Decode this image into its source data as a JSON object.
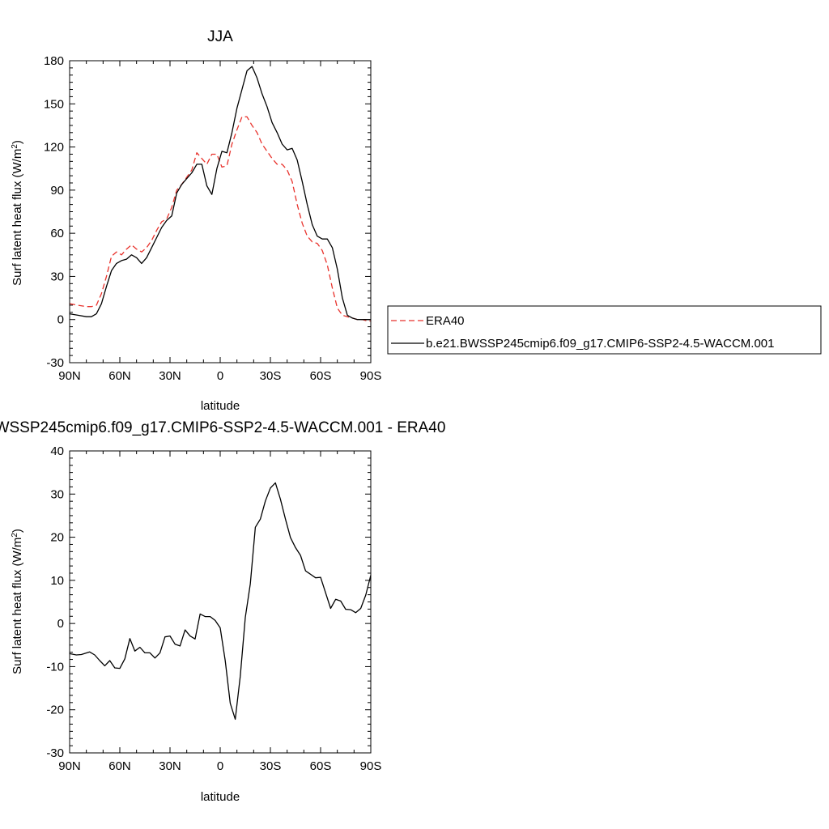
{
  "colors": {
    "background": "#ffffff",
    "model_line": "#000000",
    "era40_line": "#e8322c"
  },
  "chart_data": [
    {
      "type": "line",
      "title": "JJA",
      "xlabel": "latitude",
      "ylabel": "Surf latent heat flux (W/m",
      "ylabel_sup": "2",
      "ylabel_end": ")",
      "xlim": [
        90,
        -90
      ],
      "ylim": [
        -30,
        180
      ],
      "xticks": [
        90,
        60,
        30,
        0,
        -30,
        -60,
        -90
      ],
      "xtick_labels": [
        "90N",
        "60N",
        "30N",
        "0",
        "30S",
        "60S",
        "90S"
      ],
      "yticks": [
        -30,
        0,
        30,
        60,
        90,
        120,
        150,
        180
      ],
      "ytick_labels": [
        "-30",
        "0",
        "30",
        "60",
        "90",
        "120",
        "150",
        "180"
      ],
      "legend_position": "right",
      "series": [
        {
          "name": "ERA40",
          "style": "dashed",
          "color": "#e8322c",
          "x": [
            90,
            85,
            80,
            77,
            74,
            71,
            68,
            65,
            62,
            59,
            56,
            53,
            50,
            47,
            44,
            41,
            38,
            35,
            32,
            29,
            26,
            23,
            20,
            17,
            14,
            11,
            8,
            5,
            2,
            -1,
            -4,
            -7,
            -10,
            -13,
            -16,
            -19,
            -22,
            -25,
            -28,
            -31,
            -34,
            -37,
            -40,
            -43,
            -46,
            -49,
            -52,
            -55,
            -58,
            -61,
            -64,
            -67,
            -70,
            -73,
            -76,
            -79,
            -82,
            -85,
            -88,
            -90
          ],
          "y": [
            11,
            10,
            9,
            9,
            10,
            18,
            30,
            44,
            47,
            45,
            49,
            52,
            49,
            47,
            50,
            55,
            62,
            68,
            70,
            78,
            90,
            94,
            99,
            104,
            116,
            112,
            108,
            115,
            115,
            106,
            107,
            122,
            132,
            141,
            141,
            135,
            130,
            122,
            117,
            112,
            108,
            108,
            104,
            96,
            80,
            67,
            58,
            54,
            53,
            48,
            38,
            22,
            8,
            3,
            2,
            1,
            0,
            0,
            -1,
            -1
          ]
        },
        {
          "name": "b.e21.BWSSP245cmip6.f09_g17.CMIP6-SSP2-4.5-WACCM.001",
          "style": "solid",
          "color": "#000000",
          "x": [
            90,
            85,
            80,
            77,
            74,
            71,
            68,
            65,
            62,
            59,
            56,
            53,
            50,
            47,
            44,
            41,
            38,
            35,
            32,
            29,
            26,
            23,
            20,
            17,
            14,
            11,
            8,
            5,
            2,
            -1,
            -4,
            -7,
            -10,
            -13,
            -16,
            -19,
            -22,
            -25,
            -28,
            -31,
            -34,
            -37,
            -40,
            -43,
            -46,
            -49,
            -52,
            -55,
            -58,
            -61,
            -64,
            -67,
            -70,
            -73,
            -76,
            -79,
            -82,
            -85,
            -88,
            -90
          ],
          "y": [
            4,
            3,
            2,
            2,
            4,
            11,
            23,
            34,
            39,
            41,
            42,
            45,
            43,
            39,
            43,
            50,
            57,
            64,
            69,
            72,
            88,
            94,
            98,
            102,
            108,
            108,
            93,
            87,
            105,
            117,
            116,
            130,
            147,
            160,
            173,
            176,
            168,
            157,
            148,
            137,
            130,
            122,
            118,
            119,
            111,
            96,
            80,
            66,
            58,
            56,
            56,
            50,
            35,
            15,
            3,
            1,
            0,
            0,
            0,
            0
          ]
        }
      ]
    },
    {
      "type": "line",
      "title": "WSSP245cmip6.f09_g17.CMIP6-SSP2-4.5-WACCM.001 - ERA40",
      "xlabel": "latitude",
      "ylabel": "Surf latent heat flux (W/m",
      "ylabel_sup": "2",
      "ylabel_end": ")",
      "xlim": [
        90,
        -90
      ],
      "ylim": [
        -30,
        40
      ],
      "xticks": [
        90,
        60,
        30,
        0,
        -30,
        -60,
        -90
      ],
      "xtick_labels": [
        "90N",
        "60N",
        "30N",
        "0",
        "30S",
        "60S",
        "90S"
      ],
      "yticks": [
        -30,
        -20,
        -10,
        0,
        10,
        20,
        30,
        40
      ],
      "ytick_labels": [
        "-30",
        "-20",
        "-10",
        "0",
        "10",
        "20",
        "30",
        "40"
      ],
      "series": [
        {
          "style": "solid",
          "color": "#000000",
          "x": [
            90,
            86,
            83,
            78,
            75,
            72,
            69,
            66,
            63,
            60,
            57,
            54,
            51,
            48,
            45,
            42,
            39,
            36,
            33,
            30,
            27,
            24,
            21,
            18,
            15,
            12,
            9,
            6,
            3,
            0,
            -3,
            -6,
            -9,
            -12,
            -15,
            -18,
            -21,
            -24,
            -27,
            -30,
            -33,
            -36,
            -39,
            -42,
            -45,
            -48,
            -51,
            -54,
            -57,
            -60,
            -63,
            -66,
            -69,
            -72,
            -75,
            -78,
            -81,
            -84,
            -87,
            -90
          ],
          "y": [
            -7,
            -7.3,
            -7.2,
            -6.6,
            -7.3,
            -8.6,
            -9.8,
            -8.6,
            -10.3,
            -10.4,
            -8.2,
            -3.5,
            -6.4,
            -5.5,
            -6.8,
            -6.8,
            -8,
            -6.8,
            -3.1,
            -2.9,
            -4.8,
            -5.2,
            -1.5,
            -2.9,
            -3.6,
            2.2,
            1.6,
            1.6,
            0.7,
            -1,
            -8.6,
            -18.5,
            -22.2,
            -12.2,
            1.4,
            9.2,
            22.3,
            24.2,
            28.4,
            31.4,
            32.6,
            28.8,
            24.2,
            19.9,
            17.6,
            15.8,
            12.2,
            11.4,
            10.6,
            10.7,
            7.1,
            3.5,
            5.6,
            5.2,
            3.3,
            3.2,
            2.5,
            3.5,
            6.6,
            11.2
          ]
        }
      ]
    }
  ]
}
